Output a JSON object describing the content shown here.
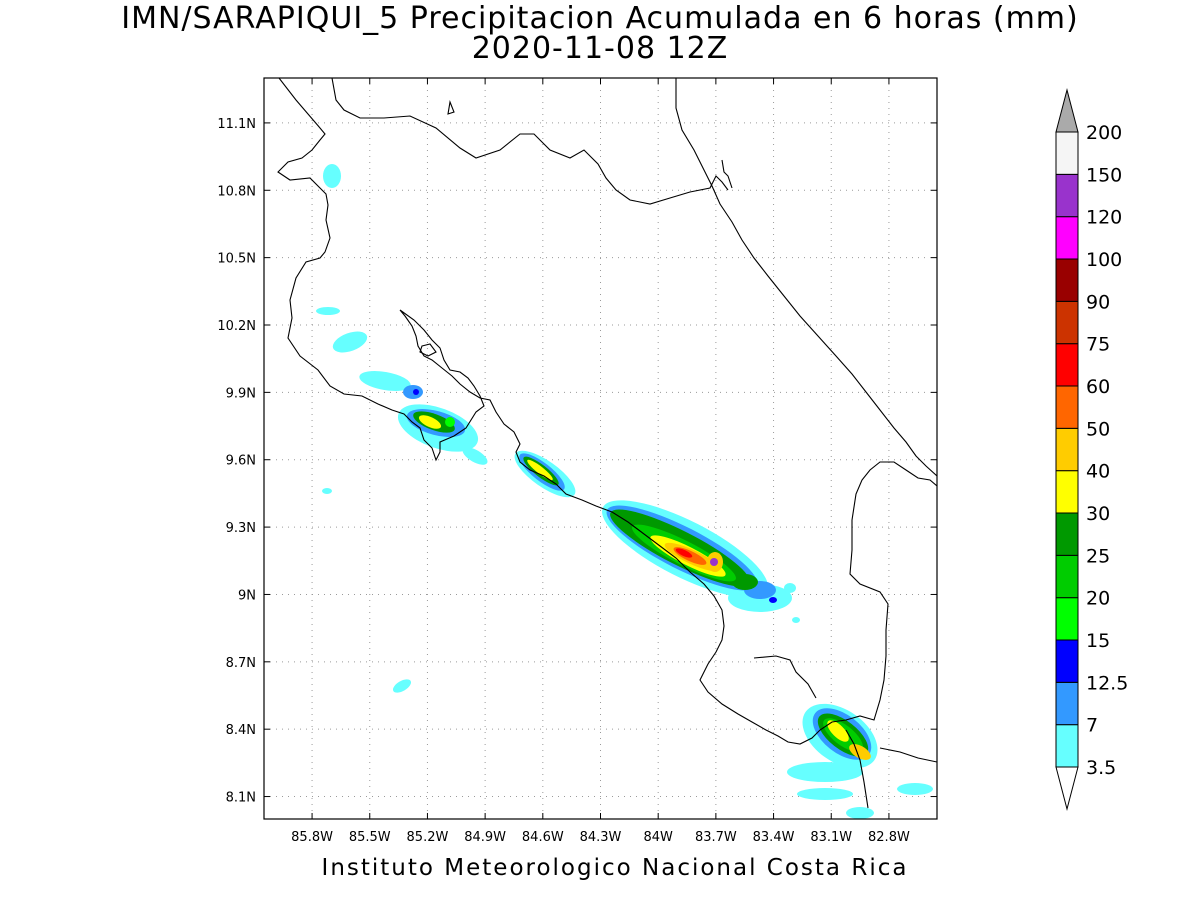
{
  "title": "IMN/SARAPIQUI_5 Precipitacion Acumulada en 6 horas (mm)",
  "subtitle": "2020-11-08 12Z",
  "credit": "Instituto Meteorologico Nacional Costa Rica",
  "map": {
    "lon_range": [
      -86.05,
      -82.55
    ],
    "lat_range": [
      8.0,
      11.3
    ],
    "lon_ticks": [
      {
        "value": -85.8,
        "label": "85.8W"
      },
      {
        "value": -85.5,
        "label": "85.5W"
      },
      {
        "value": -85.2,
        "label": "85.2W"
      },
      {
        "value": -84.9,
        "label": "84.9W"
      },
      {
        "value": -84.6,
        "label": "84.6W"
      },
      {
        "value": -84.3,
        "label": "84.3W"
      },
      {
        "value": -84.0,
        "label": "84W"
      },
      {
        "value": -83.7,
        "label": "83.7W"
      },
      {
        "value": -83.4,
        "label": "83.4W"
      },
      {
        "value": -83.1,
        "label": "83.1W"
      },
      {
        "value": -82.8,
        "label": "82.8W"
      }
    ],
    "lat_ticks": [
      {
        "value": 8.1,
        "label": "8.1N"
      },
      {
        "value": 8.4,
        "label": "8.4N"
      },
      {
        "value": 8.7,
        "label": "8.7N"
      },
      {
        "value": 9.0,
        "label": "9N"
      },
      {
        "value": 9.3,
        "label": "9.3N"
      },
      {
        "value": 9.6,
        "label": "9.6N"
      },
      {
        "value": 9.9,
        "label": "9.9N"
      },
      {
        "value": 10.2,
        "label": "10.2N"
      },
      {
        "value": 10.5,
        "label": "10.5N"
      },
      {
        "value": 10.8,
        "label": "10.8N"
      },
      {
        "value": 11.1,
        "label": "11.1N"
      }
    ],
    "grid": true
  },
  "colorbar": {
    "levels": [
      {
        "label": "3.5",
        "color": "#66ffff"
      },
      {
        "label": "7",
        "color": "#3399ff"
      },
      {
        "label": "12.5",
        "color": "#0000ff"
      },
      {
        "label": "15",
        "color": "#00ff00"
      },
      {
        "label": "20",
        "color": "#00cc00"
      },
      {
        "label": "25",
        "color": "#009900"
      },
      {
        "label": "30",
        "color": "#ffff00"
      },
      {
        "label": "40",
        "color": "#ffcc00"
      },
      {
        "label": "50",
        "color": "#ff6600"
      },
      {
        "label": "60",
        "color": "#ff0000"
      },
      {
        "label": "75",
        "color": "#cc3300"
      },
      {
        "label": "90",
        "color": "#990000"
      },
      {
        "label": "100",
        "color": "#ff00ff"
      },
      {
        "label": "120",
        "color": "#9933cc"
      },
      {
        "label": "150",
        "color": "#f5f5f5"
      },
      {
        "label": "200",
        "color": "#aaaaaa"
      }
    ]
  }
}
